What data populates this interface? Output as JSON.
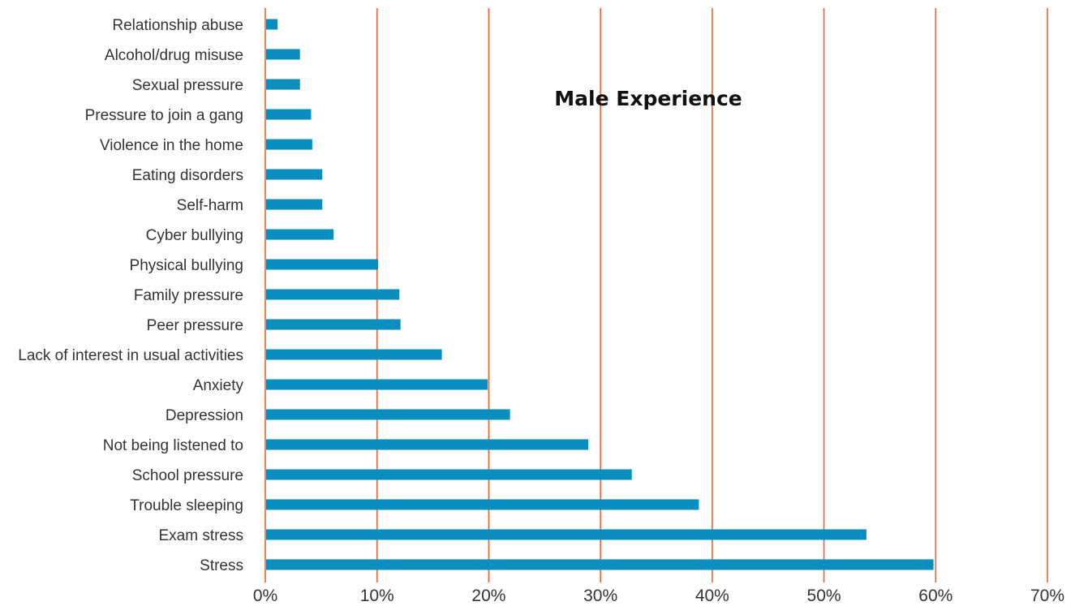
{
  "chart_data": {
    "type": "bar",
    "orientation": "horizontal",
    "title": "Male Experience",
    "xlabel": "",
    "ylabel": "",
    "xlim": [
      0,
      70
    ],
    "tick_values": [
      0,
      10,
      20,
      30,
      40,
      50,
      60,
      70
    ],
    "tick_labels": [
      "0%",
      "10%",
      "20%",
      "30%",
      "40%",
      "50%",
      "60%",
      "70%"
    ],
    "grid": "vertical",
    "categories": [
      "Relationship abuse",
      "Alcohol/drug misuse",
      "Sexual pressure",
      "Pressure to join a gang",
      "Violence in the home",
      "Eating disorders",
      "Self-harm",
      "Cyber bullying",
      "Physical bullying",
      "Family pressure",
      "Peer pressure",
      "Lack of interest in usual activities",
      "Anxiety",
      "Depression",
      "Not being listened to",
      "School pressure",
      "Trouble sleeping",
      "Exam stress",
      "Stress"
    ],
    "values": [
      1.1,
      3.1,
      3.1,
      4.1,
      4.2,
      5.1,
      5.1,
      6.1,
      10.1,
      12.0,
      12.1,
      15.8,
      19.9,
      21.9,
      28.9,
      32.8,
      38.8,
      53.8,
      59.8
    ],
    "colors": {
      "bar": "#0a8ebf",
      "gridline": "#f0622f"
    }
  }
}
